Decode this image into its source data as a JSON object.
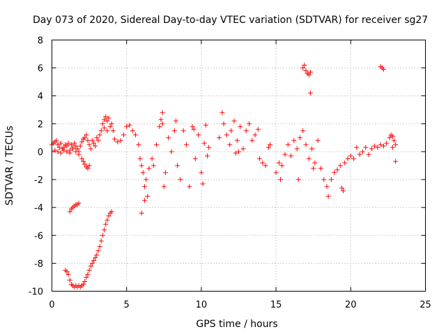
{
  "chart_data": {
    "type": "scatter",
    "title": "Day 073 of 2020, Sidereal Day-to-day VTEC variation (SDTVAR) for receiver sg27",
    "xlabel": "GPS time / hours",
    "ylabel": "SDTVAR / TECUs",
    "xlim": [
      0,
      25
    ],
    "ylim": [
      -10,
      8
    ],
    "xticks": [
      "0",
      "5",
      "10",
      "15",
      "20",
      "25"
    ],
    "yticks": [
      "8",
      "6",
      "4",
      "2",
      "0",
      "-2",
      "-4",
      "-6",
      "-8",
      "-10"
    ],
    "xtick_values": [
      0,
      5,
      10,
      15,
      20,
      25
    ],
    "ytick_values": [
      8,
      6,
      4,
      2,
      0,
      -2,
      -4,
      -6,
      -8,
      -10
    ],
    "grid": true,
    "marker": "+",
    "color": "#ff0000",
    "series": [
      {
        "name": "SDTVAR",
        "points": [
          [
            0.0,
            0.5
          ],
          [
            0.1,
            0.6
          ],
          [
            0.2,
            0.7
          ],
          [
            0.3,
            0.8
          ],
          [
            0.4,
            0.5
          ],
          [
            0.5,
            0.3
          ],
          [
            0.6,
            0.6
          ],
          [
            0.7,
            0.2
          ],
          [
            0.8,
            0.3
          ],
          [
            0.9,
            0.5
          ],
          [
            1.0,
            0.4
          ],
          [
            1.1,
            0.6
          ],
          [
            1.2,
            0.1
          ],
          [
            1.3,
            0.5
          ],
          [
            1.4,
            0.3
          ],
          [
            1.5,
            0.6
          ],
          [
            1.6,
            0.4
          ],
          [
            1.7,
            0.2
          ],
          [
            1.8,
            0.0
          ],
          [
            1.9,
            0.4
          ],
          [
            2.0,
            0.7
          ],
          [
            2.1,
            0.9
          ],
          [
            2.2,
            1.0
          ],
          [
            2.3,
            1.2
          ],
          [
            2.4,
            0.8
          ],
          [
            2.5,
            0.5
          ],
          [
            2.6,
            0.2
          ],
          [
            2.7,
            0.8
          ],
          [
            2.8,
            0.6
          ],
          [
            2.9,
            0.4
          ],
          [
            0.2,
            0.1
          ],
          [
            0.4,
            0.0
          ],
          [
            0.6,
            -0.1
          ],
          [
            0.8,
            0.1
          ],
          [
            1.0,
            0.0
          ],
          [
            1.2,
            -0.1
          ],
          [
            1.4,
            0.2
          ],
          [
            1.6,
            0.0
          ],
          [
            1.8,
            -0.2
          ],
          [
            2.0,
            -0.5
          ],
          [
            2.1,
            -0.7
          ],
          [
            2.2,
            -0.9
          ],
          [
            2.3,
            -1.1
          ],
          [
            2.4,
            -1.2
          ],
          [
            2.5,
            -1.0
          ],
          [
            3.0,
            1.0
          ],
          [
            3.1,
            0.8
          ],
          [
            3.2,
            1.2
          ],
          [
            3.3,
            1.5
          ],
          [
            3.4,
            2.0
          ],
          [
            3.5,
            2.3
          ],
          [
            3.6,
            2.5
          ],
          [
            3.7,
            2.2
          ],
          [
            3.8,
            2.4
          ],
          [
            3.9,
            1.8
          ],
          [
            4.0,
            2.0
          ],
          [
            4.1,
            1.5
          ],
          [
            3.5,
            1.7
          ],
          [
            3.7,
            1.5
          ],
          [
            4.2,
            0.9
          ],
          [
            4.4,
            0.7
          ],
          [
            4.6,
            0.8
          ],
          [
            4.8,
            1.2
          ],
          [
            5.0,
            1.8
          ],
          [
            5.2,
            1.9
          ],
          [
            5.4,
            1.5
          ],
          [
            5.6,
            1.2
          ],
          [
            5.8,
            0.5
          ],
          [
            5.9,
            -0.5
          ],
          [
            6.0,
            -1.0
          ],
          [
            6.1,
            -1.5
          ],
          [
            6.2,
            -2.5
          ],
          [
            6.3,
            -2.0
          ],
          [
            6.5,
            -1.2
          ],
          [
            6.7,
            -0.5
          ],
          [
            6.8,
            -1.0
          ],
          [
            7.0,
            0.5
          ],
          [
            7.2,
            1.8
          ],
          [
            7.4,
            2.8
          ],
          [
            7.5,
            -2.5
          ],
          [
            7.6,
            -1.5
          ],
          [
            7.8,
            1.0
          ],
          [
            8.0,
            0.0
          ],
          [
            8.2,
            1.5
          ],
          [
            8.4,
            -1.0
          ],
          [
            8.6,
            -2.0
          ],
          [
            8.8,
            1.5
          ],
          [
            9.0,
            0.5
          ],
          [
            9.2,
            -2.5
          ],
          [
            9.4,
            1.8
          ],
          [
            9.6,
            -0.5
          ],
          [
            9.8,
            1.2
          ],
          [
            10.0,
            -1.5
          ],
          [
            10.2,
            0.6
          ],
          [
            10.4,
            -0.3
          ],
          [
            10.5,
            0.3
          ],
          [
            6.2,
            -3.5
          ],
          [
            6.0,
            -4.4
          ],
          [
            6.4,
            -3.2
          ],
          [
            7.4,
            2.0
          ],
          [
            7.3,
            2.3
          ],
          [
            8.3,
            2.2
          ],
          [
            9.5,
            1.6
          ],
          [
            10.3,
            1.9
          ],
          [
            10.1,
            -2.3
          ],
          [
            11.2,
            1.0
          ],
          [
            11.4,
            2.8
          ],
          [
            11.5,
            2.0
          ],
          [
            11.7,
            1.2
          ],
          [
            11.9,
            0.5
          ],
          [
            12.0,
            1.5
          ],
          [
            12.2,
            2.2
          ],
          [
            12.4,
            0.8
          ],
          [
            12.6,
            1.8
          ],
          [
            12.8,
            0.2
          ],
          [
            13.0,
            1.5
          ],
          [
            13.2,
            2.0
          ],
          [
            13.4,
            0.8
          ],
          [
            13.6,
            1.2
          ],
          [
            13.8,
            1.6
          ],
          [
            12.5,
            0.0
          ],
          [
            12.3,
            -0.1
          ],
          [
            13.9,
            -0.5
          ],
          [
            14.1,
            -0.8
          ],
          [
            14.3,
            -1.0
          ],
          [
            14.5,
            0.3
          ],
          [
            14.6,
            0.5
          ],
          [
            15.0,
            -1.5
          ],
          [
            15.2,
            -0.8
          ],
          [
            15.4,
            -1.0
          ],
          [
            15.6,
            -0.2
          ],
          [
            15.8,
            0.5
          ],
          [
            16.0,
            -0.3
          ],
          [
            16.2,
            0.8
          ],
          [
            16.4,
            0.2
          ],
          [
            16.6,
            1.0
          ],
          [
            16.8,
            1.5
          ],
          [
            17.0,
            0.5
          ],
          [
            17.2,
            -0.5
          ],
          [
            17.4,
            0.2
          ],
          [
            17.6,
            -0.8
          ],
          [
            17.8,
            0.8
          ],
          [
            18.0,
            -1.2
          ],
          [
            18.2,
            -2.0
          ],
          [
            18.4,
            -2.5
          ],
          [
            18.5,
            -3.2
          ],
          [
            18.7,
            -2.0
          ],
          [
            18.9,
            -1.5
          ],
          [
            19.1,
            -1.3
          ],
          [
            19.3,
            -1.0
          ],
          [
            19.4,
            -2.6
          ],
          [
            19.5,
            -2.8
          ],
          [
            19.6,
            -0.8
          ],
          [
            19.8,
            -0.5
          ],
          [
            20.0,
            -0.3
          ],
          [
            20.2,
            -0.5
          ],
          [
            20.4,
            0.3
          ],
          [
            20.6,
            -0.2
          ],
          [
            20.8,
            0.0
          ],
          [
            21.0,
            0.3
          ],
          [
            21.2,
            -0.2
          ],
          [
            21.4,
            0.2
          ],
          [
            21.6,
            0.4
          ],
          [
            21.8,
            0.3
          ],
          [
            22.0,
            0.5
          ],
          [
            22.2,
            0.4
          ],
          [
            22.4,
            0.6
          ],
          [
            15.3,
            -2.0
          ],
          [
            17.5,
            -1.2
          ],
          [
            16.5,
            -2.0
          ],
          [
            22.6,
            1.0
          ],
          [
            22.7,
            1.2
          ],
          [
            22.8,
            1.1
          ],
          [
            22.9,
            0.8
          ],
          [
            23.0,
            0.5
          ],
          [
            22.8,
            0.3
          ],
          [
            23.0,
            -0.7
          ],
          [
            16.8,
            6.0
          ],
          [
            16.9,
            6.2
          ],
          [
            17.0,
            5.8
          ],
          [
            17.1,
            5.6
          ],
          [
            17.2,
            5.5
          ],
          [
            17.3,
            5.7
          ],
          [
            17.3,
            4.2
          ],
          [
            22.0,
            6.1
          ],
          [
            22.1,
            6.0
          ],
          [
            22.2,
            5.9
          ],
          [
            0.9,
            -8.5
          ],
          [
            1.0,
            -8.6
          ],
          [
            1.1,
            -8.8
          ],
          [
            1.2,
            -9.2
          ],
          [
            1.3,
            -9.5
          ],
          [
            1.4,
            -9.6
          ],
          [
            1.5,
            -9.7
          ],
          [
            1.6,
            -9.6
          ],
          [
            1.7,
            -9.7
          ],
          [
            1.8,
            -9.6
          ],
          [
            1.9,
            -9.7
          ],
          [
            2.0,
            -9.6
          ],
          [
            2.1,
            -9.5
          ],
          [
            2.2,
            -9.3
          ],
          [
            2.3,
            -9.0
          ],
          [
            2.4,
            -8.8
          ],
          [
            2.5,
            -8.5
          ],
          [
            2.6,
            -8.2
          ],
          [
            2.7,
            -8.0
          ],
          [
            2.8,
            -7.8
          ],
          [
            2.9,
            -7.6
          ],
          [
            3.0,
            -7.4
          ],
          [
            3.1,
            -7.1
          ],
          [
            3.2,
            -6.8
          ],
          [
            3.3,
            -6.4
          ],
          [
            3.4,
            -6.0
          ],
          [
            3.5,
            -5.6
          ],
          [
            3.6,
            -5.2
          ],
          [
            3.7,
            -4.9
          ],
          [
            3.8,
            -4.6
          ],
          [
            3.9,
            -4.4
          ],
          [
            4.0,
            -4.3
          ],
          [
            1.2,
            -4.3
          ],
          [
            1.3,
            -4.1
          ],
          [
            1.4,
            -4.0
          ],
          [
            1.5,
            -3.9
          ],
          [
            1.6,
            -3.8
          ],
          [
            1.7,
            -3.8
          ],
          [
            1.8,
            -3.7
          ]
        ]
      }
    ]
  }
}
